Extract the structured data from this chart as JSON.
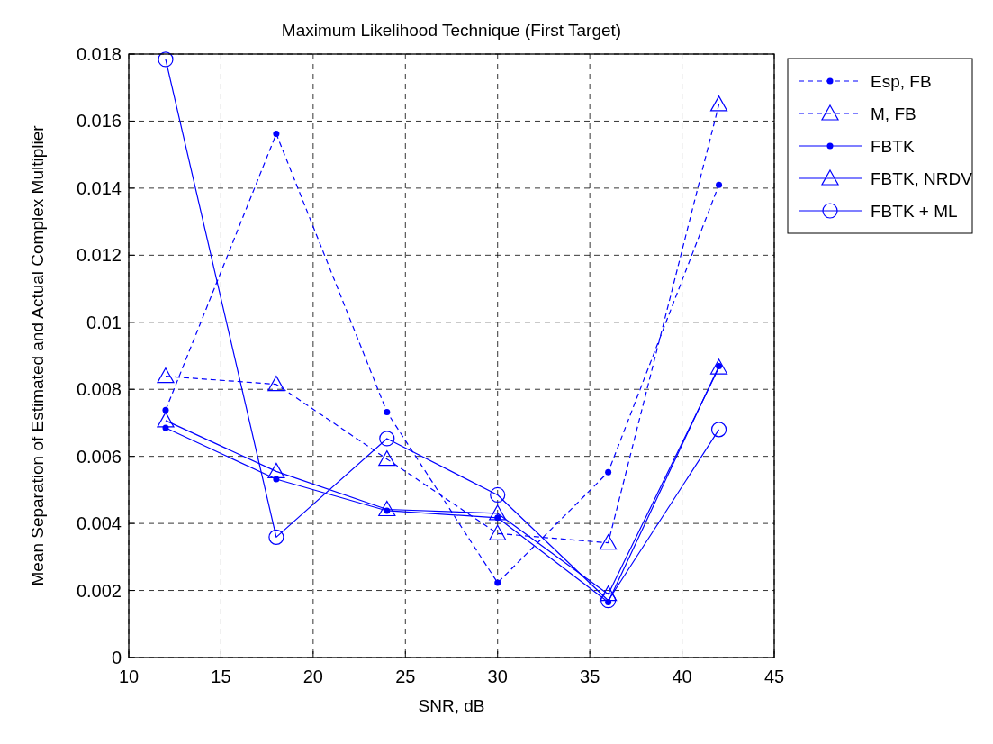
{
  "chart_data": {
    "type": "line",
    "title": "Maximum Likelihood Technique (First Target)",
    "xlabel": "SNR, dB",
    "ylabel": "Mean Separation of Estimated and Actual Complex Multiplier",
    "x": [
      12,
      18,
      24,
      30,
      36,
      42
    ],
    "series": [
      {
        "name": "Esp, FB",
        "color": "#0000ff",
        "line_style": "dashed",
        "marker": "point",
        "values": [
          0.00738,
          0.01562,
          0.00732,
          0.00223,
          0.00553,
          0.0141
        ]
      },
      {
        "name": "M, FB",
        "color": "#0000ff",
        "line_style": "dashed",
        "marker": "triangle",
        "values": [
          0.00839,
          0.00815,
          0.00592,
          0.0037,
          0.00342,
          0.0165
        ]
      },
      {
        "name": "FBTK",
        "color": "#0000ff",
        "line_style": "solid",
        "marker": "point",
        "values": [
          0.00685,
          0.00532,
          0.00438,
          0.00417,
          0.00165,
          0.00869
        ]
      },
      {
        "name": "FBTK, NRDV",
        "color": "#0000ff",
        "line_style": "solid",
        "marker": "triangle",
        "values": [
          0.00707,
          0.00555,
          0.00442,
          0.0043,
          0.00189,
          0.00865
        ]
      },
      {
        "name": "FBTK + ML",
        "color": "#0000ff",
        "line_style": "solid",
        "marker": "circle",
        "values": [
          0.01784,
          0.00359,
          0.00653,
          0.00485,
          0.0017,
          0.0068
        ]
      }
    ],
    "xlim": [
      10,
      45
    ],
    "xticks": [
      10,
      15,
      20,
      25,
      30,
      35,
      40,
      45
    ],
    "ylim": [
      0,
      0.018
    ],
    "yticks": [
      0,
      0.002,
      0.004,
      0.006,
      0.008,
      0.01,
      0.012,
      0.014,
      0.016,
      0.018
    ],
    "grid": true,
    "legend": "top right"
  }
}
